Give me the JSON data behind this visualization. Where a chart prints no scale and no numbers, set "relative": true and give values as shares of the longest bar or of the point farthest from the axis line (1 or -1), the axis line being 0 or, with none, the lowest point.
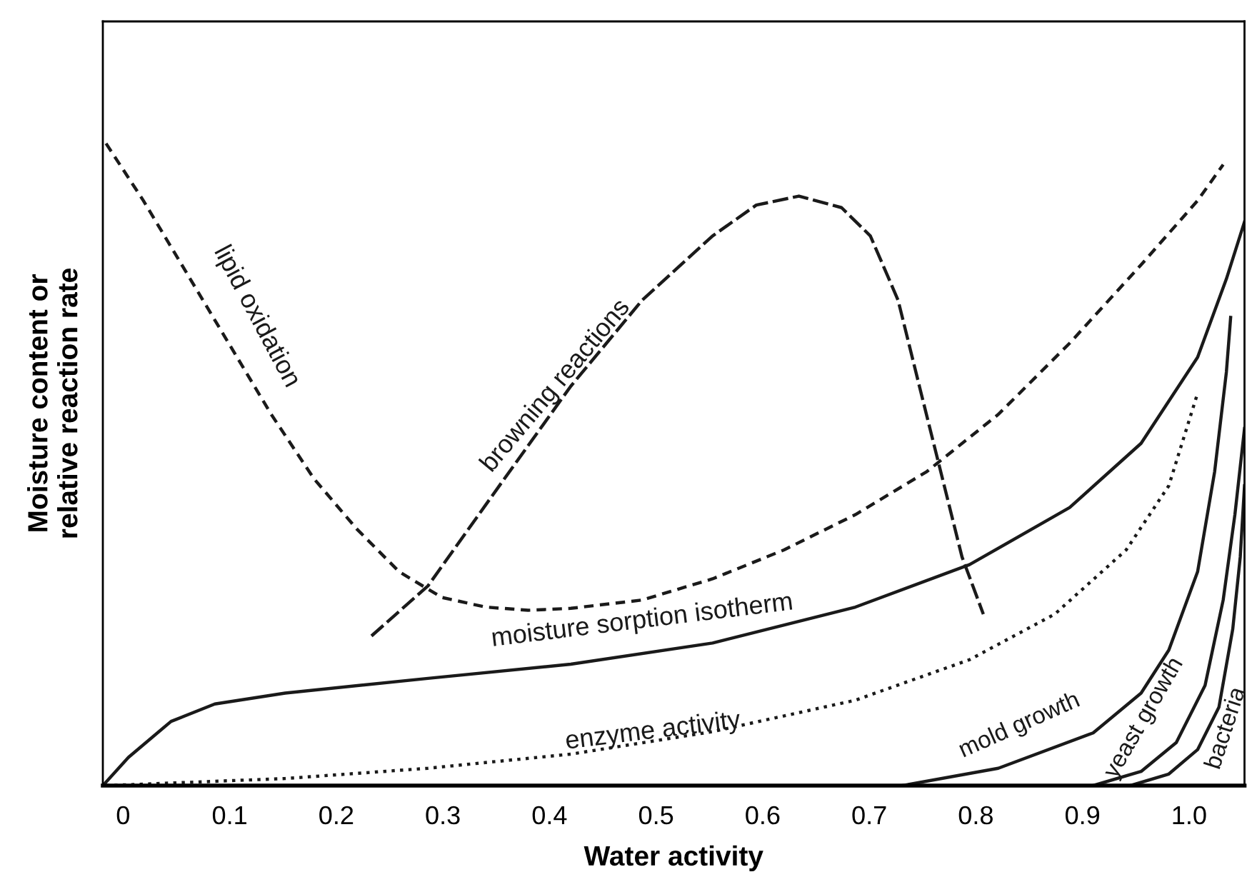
{
  "chart_data": {
    "type": "line",
    "relative": true,
    "xlabel": "Water activity",
    "ylabel": "Moisture content or\nrelative reaction rate",
    "xlim": [
      -0.019,
      1.052
    ],
    "xticks": [
      0,
      0.1,
      0.2,
      0.3,
      0.4,
      0.5,
      0.6,
      0.7,
      0.8,
      0.9,
      {
        "value": 1.0,
        "label": "1.0"
      }
    ],
    "grid": false,
    "legend": false,
    "marker": "none",
    "series": [
      {
        "name": "lipid oxidation",
        "color": "#1a1a1a",
        "line_style": "dashed",
        "x": [
          -0.016,
          0.019,
          0.059,
          0.099,
          0.139,
          0.179,
          0.219,
          0.259,
          0.299,
          0.34,
          0.38,
          0.42,
          0.487,
          0.553,
          0.62,
          0.687,
          0.754,
          0.821,
          0.888,
          0.955,
          1.008,
          1.032
        ],
        "values": [
          1.0,
          0.911,
          0.8,
          0.689,
          0.578,
          0.478,
          0.4,
          0.333,
          0.293,
          0.278,
          0.273,
          0.276,
          0.289,
          0.322,
          0.367,
          0.422,
          0.489,
          0.578,
          0.689,
          0.811,
          0.911,
          0.967
        ]
      },
      {
        "name": "browning reactions",
        "color": "#1a1a1a",
        "line_style": "dashed",
        "x": [
          0.233,
          0.286,
          0.353,
          0.42,
          0.487,
          0.553,
          0.594,
          0.634,
          0.674,
          0.701,
          0.727,
          0.747,
          0.767,
          0.787,
          0.807
        ],
        "values": [
          0.233,
          0.311,
          0.467,
          0.622,
          0.756,
          0.856,
          0.904,
          0.918,
          0.9,
          0.856,
          0.756,
          0.622,
          0.489,
          0.356,
          0.267
        ]
      },
      {
        "name": "moisture sorption isotherm",
        "color": "#1a1a1a",
        "line_style": "solid",
        "x": [
          -0.019,
          0.005,
          0.045,
          0.086,
          0.152,
          0.286,
          0.42,
          0.553,
          0.687,
          0.794,
          0.888,
          0.955,
          1.008,
          1.035,
          1.052
        ],
        "values": [
          0,
          0.044,
          0.1,
          0.127,
          0.144,
          0.167,
          0.189,
          0.222,
          0.278,
          0.344,
          0.433,
          0.533,
          0.667,
          0.789,
          0.878
        ]
      },
      {
        "name": "enzyme activity",
        "color": "#1a1a1a",
        "line_style": "dotted",
        "x": [
          -0.016,
          0.152,
          0.286,
          0.42,
          0.553,
          0.687,
          0.794,
          0.874,
          0.941,
          0.981,
          1.008
        ],
        "values": [
          0,
          0.011,
          0.027,
          0.049,
          0.084,
          0.133,
          0.196,
          0.267,
          0.367,
          0.467,
          0.611
        ]
      },
      {
        "name": "mold growth",
        "color": "#1a1a1a",
        "line_style": "solid",
        "x": [
          0.731,
          0.821,
          0.91,
          0.955,
          0.981,
          1.008,
          1.024,
          1.035,
          1.039
        ],
        "values": [
          0,
          0.027,
          0.082,
          0.144,
          0.211,
          0.333,
          0.489,
          0.644,
          0.729
        ]
      },
      {
        "name": "yeast growth",
        "color": "#1a1a1a",
        "line_style": "solid",
        "x": [
          0.91,
          0.955,
          0.988,
          1.015,
          1.032,
          1.043,
          1.052
        ],
        "values": [
          0,
          0.022,
          0.067,
          0.156,
          0.289,
          0.422,
          0.556
        ]
      },
      {
        "name": "bacteria",
        "color": "#1a1a1a",
        "line_style": "solid",
        "x": [
          0.945,
          0.981,
          1.008,
          1.028,
          1.041,
          1.048,
          1.052
        ],
        "values": [
          0,
          0.018,
          0.056,
          0.122,
          0.244,
          0.356,
          0.467
        ]
      }
    ]
  }
}
